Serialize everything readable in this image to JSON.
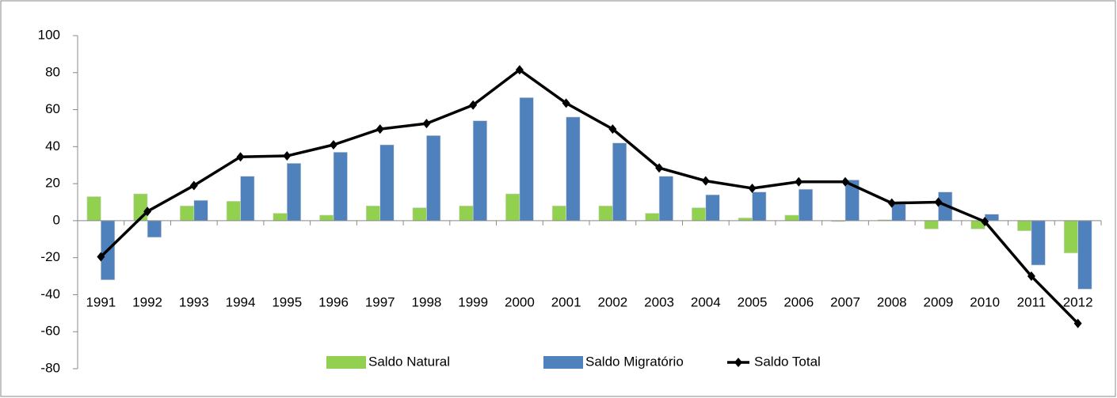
{
  "chart_data": {
    "type": "bar",
    "categories": [
      "1991",
      "1992",
      "1993",
      "1994",
      "1995",
      "1996",
      "1997",
      "1998",
      "1999",
      "2000",
      "2001",
      "2002",
      "2003",
      "2004",
      "2005",
      "2006",
      "2007",
      "2008",
      "2009",
      "2010",
      "2011",
      "2012"
    ],
    "series": [
      {
        "name": "Saldo Natural",
        "type": "bar",
        "color": "#92d050",
        "values": [
          13,
          14.5,
          8,
          10.5,
          4,
          3,
          8,
          7,
          8,
          14.5,
          8,
          8,
          4,
          7,
          1.5,
          3,
          -0.5,
          0.5,
          -4.5,
          -4.5,
          -5.5,
          -17.5
        ]
      },
      {
        "name": "Saldo Migratório",
        "type": "bar",
        "color": "#4f81bd",
        "values": [
          -32,
          -9,
          11,
          24,
          31,
          37,
          41,
          46,
          54,
          66.5,
          56,
          42,
          24,
          14,
          15.5,
          17,
          22,
          9.5,
          15.5,
          3.5,
          -24,
          -37
        ]
      },
      {
        "name": "Saldo Total",
        "type": "line",
        "color": "#000000",
        "values": [
          -19.5,
          5,
          19,
          34.5,
          35,
          41,
          49.5,
          52.5,
          62.5,
          81.5,
          63.5,
          49.5,
          28.5,
          21.5,
          17.5,
          21,
          21,
          9.5,
          10,
          -0.5,
          -30,
          -55.5
        ]
      }
    ],
    "ylim": [
      -80,
      100
    ],
    "yticks": [
      -80,
      -60,
      -40,
      -20,
      0,
      20,
      40,
      60,
      80,
      100
    ],
    "legend": "bottom"
  }
}
